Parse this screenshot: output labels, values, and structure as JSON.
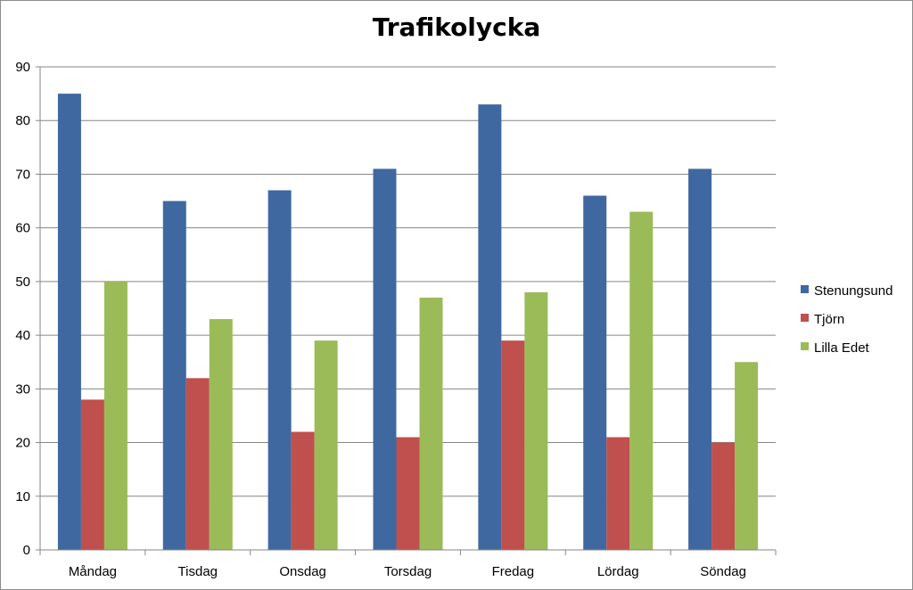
{
  "chart_data": {
    "type": "bar",
    "title": "Trafikolycka",
    "categories": [
      "Måndag",
      "Tisdag",
      "Onsdag",
      "Torsdag",
      "Fredag",
      "Lördag",
      "Söndag"
    ],
    "series": [
      {
        "name": "Stenungsund",
        "color": "#4068a0",
        "values": [
          85,
          65,
          67,
          71,
          83,
          66,
          71
        ]
      },
      {
        "name": "Tjörn",
        "color": "#c0504d",
        "values": [
          28,
          32,
          22,
          21,
          39,
          21,
          20
        ]
      },
      {
        "name": "Lilla Edet",
        "color": "#9bbb59",
        "values": [
          50,
          43,
          39,
          47,
          48,
          63,
          35
        ]
      }
    ],
    "ylim": [
      0,
      90
    ],
    "yticks": [
      0,
      10,
      20,
      30,
      40,
      50,
      60,
      70,
      80,
      90
    ],
    "grid": true,
    "legend_position": "right"
  }
}
